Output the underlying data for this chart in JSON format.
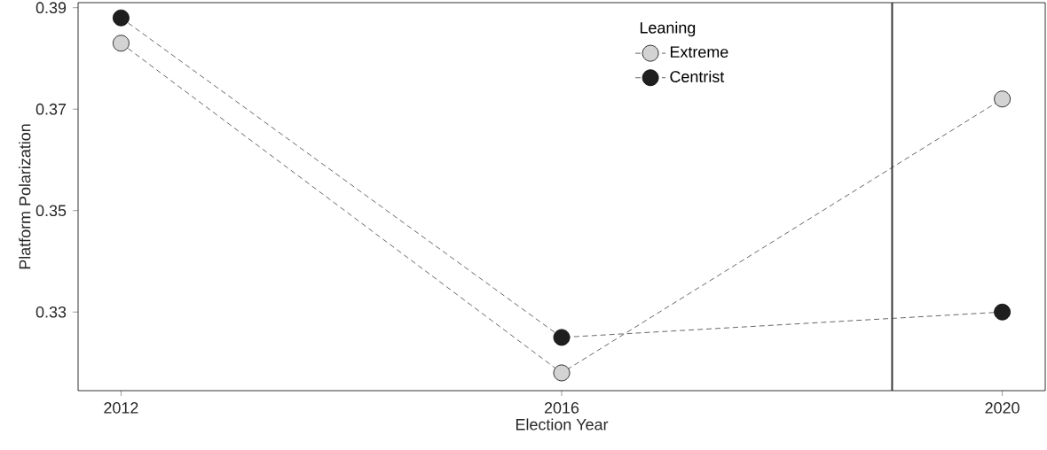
{
  "chart_data": {
    "type": "line",
    "xlabel": "Election Year",
    "ylabel": "Platform Polarization",
    "legend_title": "Leaning",
    "x": [
      2012,
      2016,
      2020
    ],
    "series": [
      {
        "name": "Extreme",
        "color": "#d3d3d3",
        "values": [
          0.383,
          0.318,
          0.372
        ]
      },
      {
        "name": "Centrist",
        "color": "#1f1f1f",
        "values": [
          0.388,
          0.325,
          0.33
        ]
      }
    ],
    "xlim": [
      2011.61,
      2020.39
    ],
    "ylim": [
      0.3145,
      0.391
    ],
    "xticks": [
      2012,
      2016,
      2020
    ],
    "yticks": [
      0.33,
      0.35,
      0.37,
      0.39
    ],
    "ref_lines": [
      {
        "axis": "x",
        "value": 2019,
        "color": "#3a3a3a"
      }
    ],
    "grid": false,
    "legend": "top",
    "marker": "circle",
    "line_style": "dashed"
  }
}
